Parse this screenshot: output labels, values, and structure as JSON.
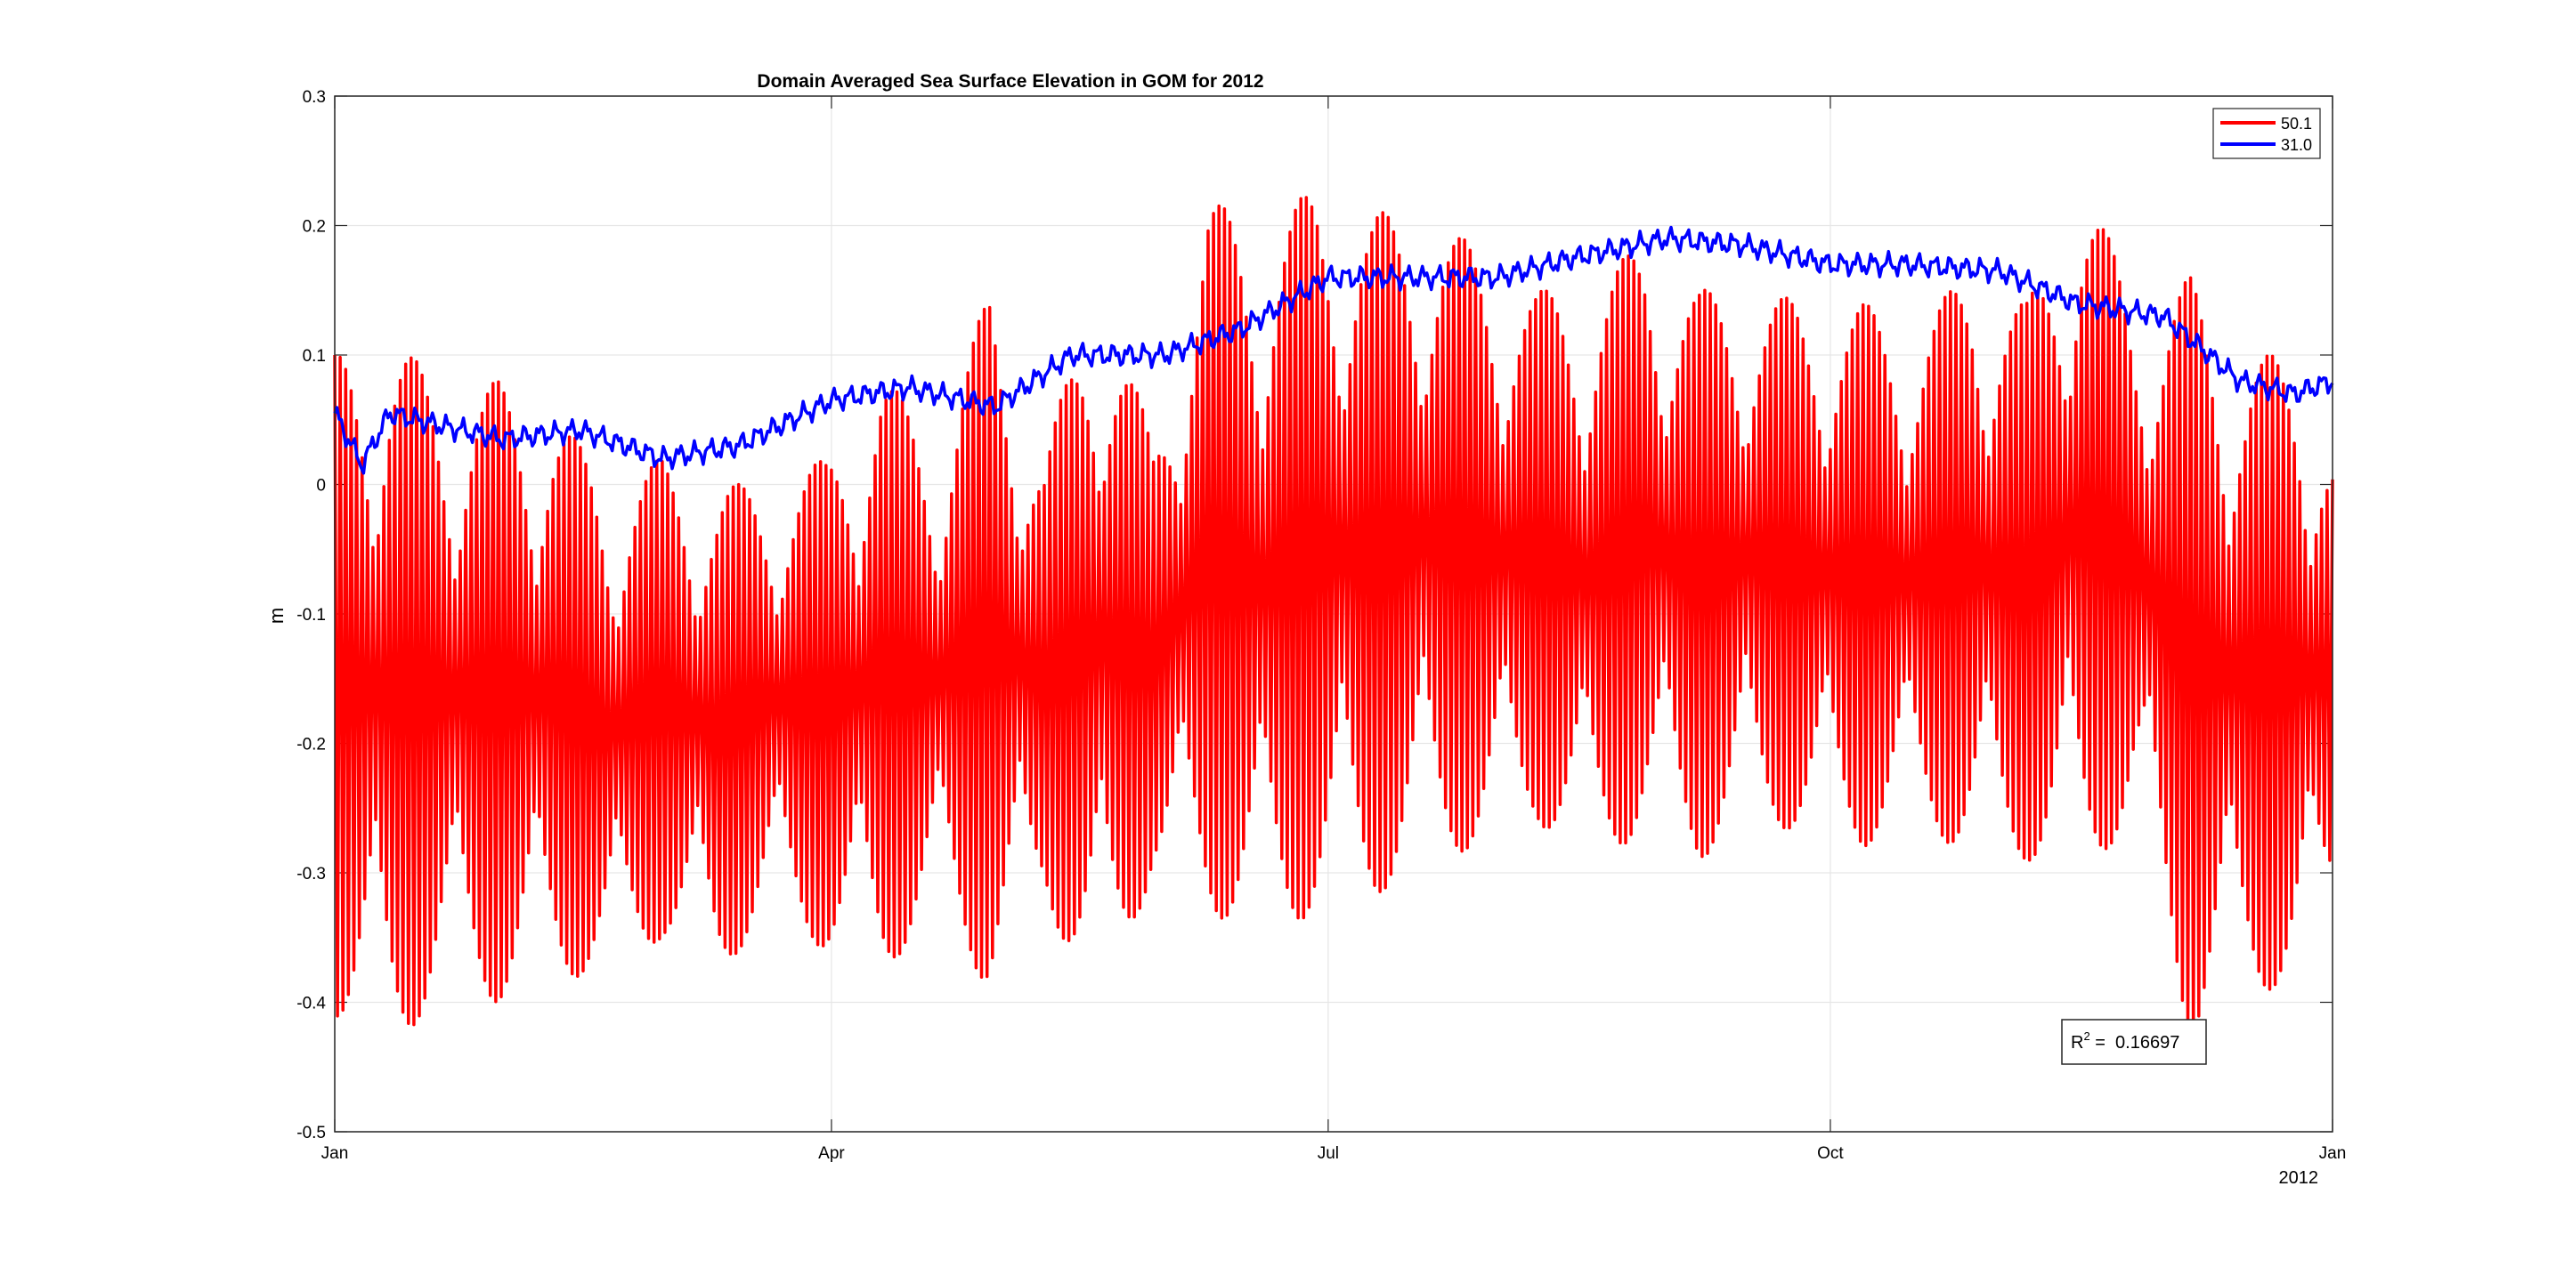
{
  "chart_data": {
    "type": "line",
    "title": "Domain Averaged Sea Surface Elevation in GOM for 2012",
    "xlabel": "",
    "ylabel": "m",
    "ylim": [
      -0.5,
      0.3
    ],
    "xlim": [
      "2012-01-01",
      "2013-01-01"
    ],
    "yticks": [
      -0.5,
      -0.4,
      -0.3,
      -0.2,
      -0.1,
      0,
      0.1,
      0.2,
      0.3
    ],
    "ytick_labels": [
      "-0.5",
      "-0.4",
      "-0.3",
      "-0.2",
      "-0.1",
      "0",
      "0.1",
      "0.2",
      "0.3"
    ],
    "xticks": [
      "2012-01-01",
      "2012-04-01",
      "2012-07-01",
      "2012-10-01",
      "2013-01-01"
    ],
    "xtick_labels": [
      "Jan",
      "Apr",
      "Jul",
      "Oct",
      "Jan"
    ],
    "x_secondary_label": "2012",
    "grid": true,
    "legend_position": "top-right",
    "annotation": {
      "label": "R",
      "superscript": "2",
      "text": " =  0.16697"
    },
    "series": [
      {
        "name": "50.1",
        "color": "#ff0000",
        "sampling": "ten-day peak-to-peak envelope; tidal signal oscillates between min and max",
        "x": [
          "2012-01-01",
          "2012-01-11",
          "2012-01-21",
          "2012-01-31",
          "2012-02-10",
          "2012-02-20",
          "2012-03-01",
          "2012-03-11",
          "2012-03-21",
          "2012-03-31",
          "2012-04-10",
          "2012-04-20",
          "2012-04-30",
          "2012-05-10",
          "2012-05-20",
          "2012-05-30",
          "2012-06-09",
          "2012-06-19",
          "2012-06-29",
          "2012-07-09",
          "2012-07-19",
          "2012-07-29",
          "2012-08-08",
          "2012-08-18",
          "2012-08-28",
          "2012-09-07",
          "2012-09-17",
          "2012-09-27",
          "2012-10-07",
          "2012-10-17",
          "2012-10-27",
          "2012-11-06",
          "2012-11-16",
          "2012-11-26",
          "2012-12-06",
          "2012-12-16",
          "2012-12-26",
          "2013-01-01"
        ],
        "max": [
          0.1,
          0.12,
          0.07,
          0.08,
          0.06,
          0.0,
          0.02,
          0.0,
          0.0,
          0.02,
          0.09,
          0.03,
          0.15,
          0.02,
          0.17,
          0.03,
          0.22,
          0.2,
          0.23,
          0.21,
          0.21,
          0.18,
          0.15,
          0.15,
          0.19,
          0.15,
          0.15,
          0.14,
          0.14,
          0.12,
          0.17,
          0.14,
          0.24,
          0.14,
          0.16,
          0.1,
          0.1,
          0.03
        ],
        "min": [
          -0.41,
          -0.44,
          -0.39,
          -0.4,
          -0.38,
          -0.38,
          -0.35,
          -0.38,
          -0.33,
          -0.36,
          -0.38,
          -0.33,
          -0.39,
          -0.32,
          -0.41,
          -0.3,
          -0.33,
          -0.35,
          -0.33,
          -0.32,
          -0.29,
          -0.28,
          -0.26,
          -0.29,
          -0.27,
          -0.29,
          -0.26,
          -0.27,
          -0.28,
          -0.26,
          -0.29,
          -0.29,
          -0.3,
          -0.26,
          -0.43,
          -0.39,
          -0.39,
          -0.32
        ]
      },
      {
        "name": "31.0",
        "color": "#0000ff",
        "x": [
          "2012-01-01",
          "2012-01-06",
          "2012-01-11",
          "2012-01-21",
          "2012-02-01",
          "2012-02-15",
          "2012-03-01",
          "2012-03-15",
          "2012-04-01",
          "2012-04-15",
          "2012-05-01",
          "2012-05-15",
          "2012-06-01",
          "2012-06-15",
          "2012-07-01",
          "2012-07-15",
          "2012-08-01",
          "2012-08-15",
          "2012-09-01",
          "2012-09-15",
          "2012-10-01",
          "2012-10-15",
          "2012-11-01",
          "2012-11-15",
          "2012-12-01",
          "2012-12-15",
          "2012-12-25",
          "2013-01-01"
        ],
        "values": [
          0.055,
          0.015,
          0.055,
          0.045,
          0.035,
          0.042,
          0.02,
          0.03,
          0.065,
          0.075,
          0.06,
          0.1,
          0.1,
          0.12,
          0.16,
          0.16,
          0.16,
          0.175,
          0.19,
          0.185,
          0.17,
          0.17,
          0.165,
          0.14,
          0.13,
          0.08,
          0.07,
          0.08
        ]
      }
    ]
  }
}
